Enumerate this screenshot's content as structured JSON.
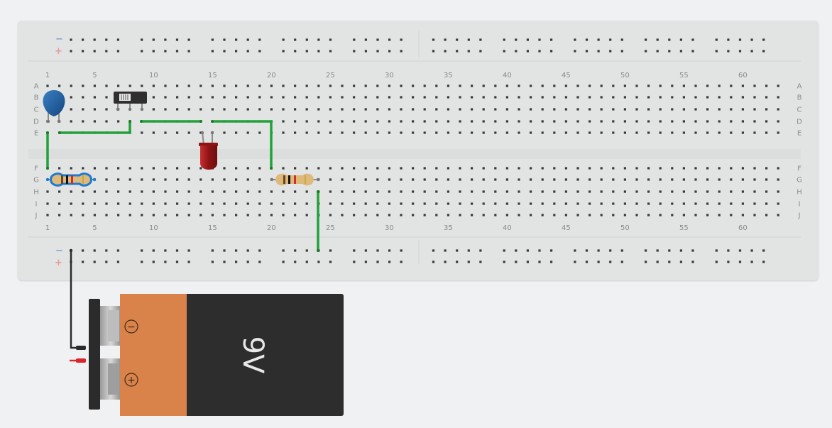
{
  "breadboard": {
    "column_numbers": [
      "1",
      "5",
      "10",
      "15",
      "20",
      "25",
      "30",
      "35",
      "40",
      "45",
      "50",
      "55",
      "60"
    ],
    "row_letters_top": [
      "A",
      "B",
      "C",
      "D",
      "E"
    ],
    "row_letters_bottom": [
      "F",
      "G",
      "H",
      "I",
      "J"
    ],
    "rail_minus": "−",
    "rail_plus": "+"
  },
  "battery": {
    "label": "9V",
    "minus_symbol": "−",
    "plus_symbol": "+"
  },
  "colors": {
    "board": "#e2e3e3",
    "hole": "#3a3a3a",
    "wire_green": "#22a13a",
    "wire_black": "#2b2b2b",
    "wire_red": "#d9262b",
    "rail_minus": "#7aa6d6",
    "rail_plus": "#e69a9a",
    "capacitor": "#1d5fa3",
    "led": "#a31c1c",
    "battery_body": "#2d2d2d",
    "battery_band": "#d9824a"
  }
}
